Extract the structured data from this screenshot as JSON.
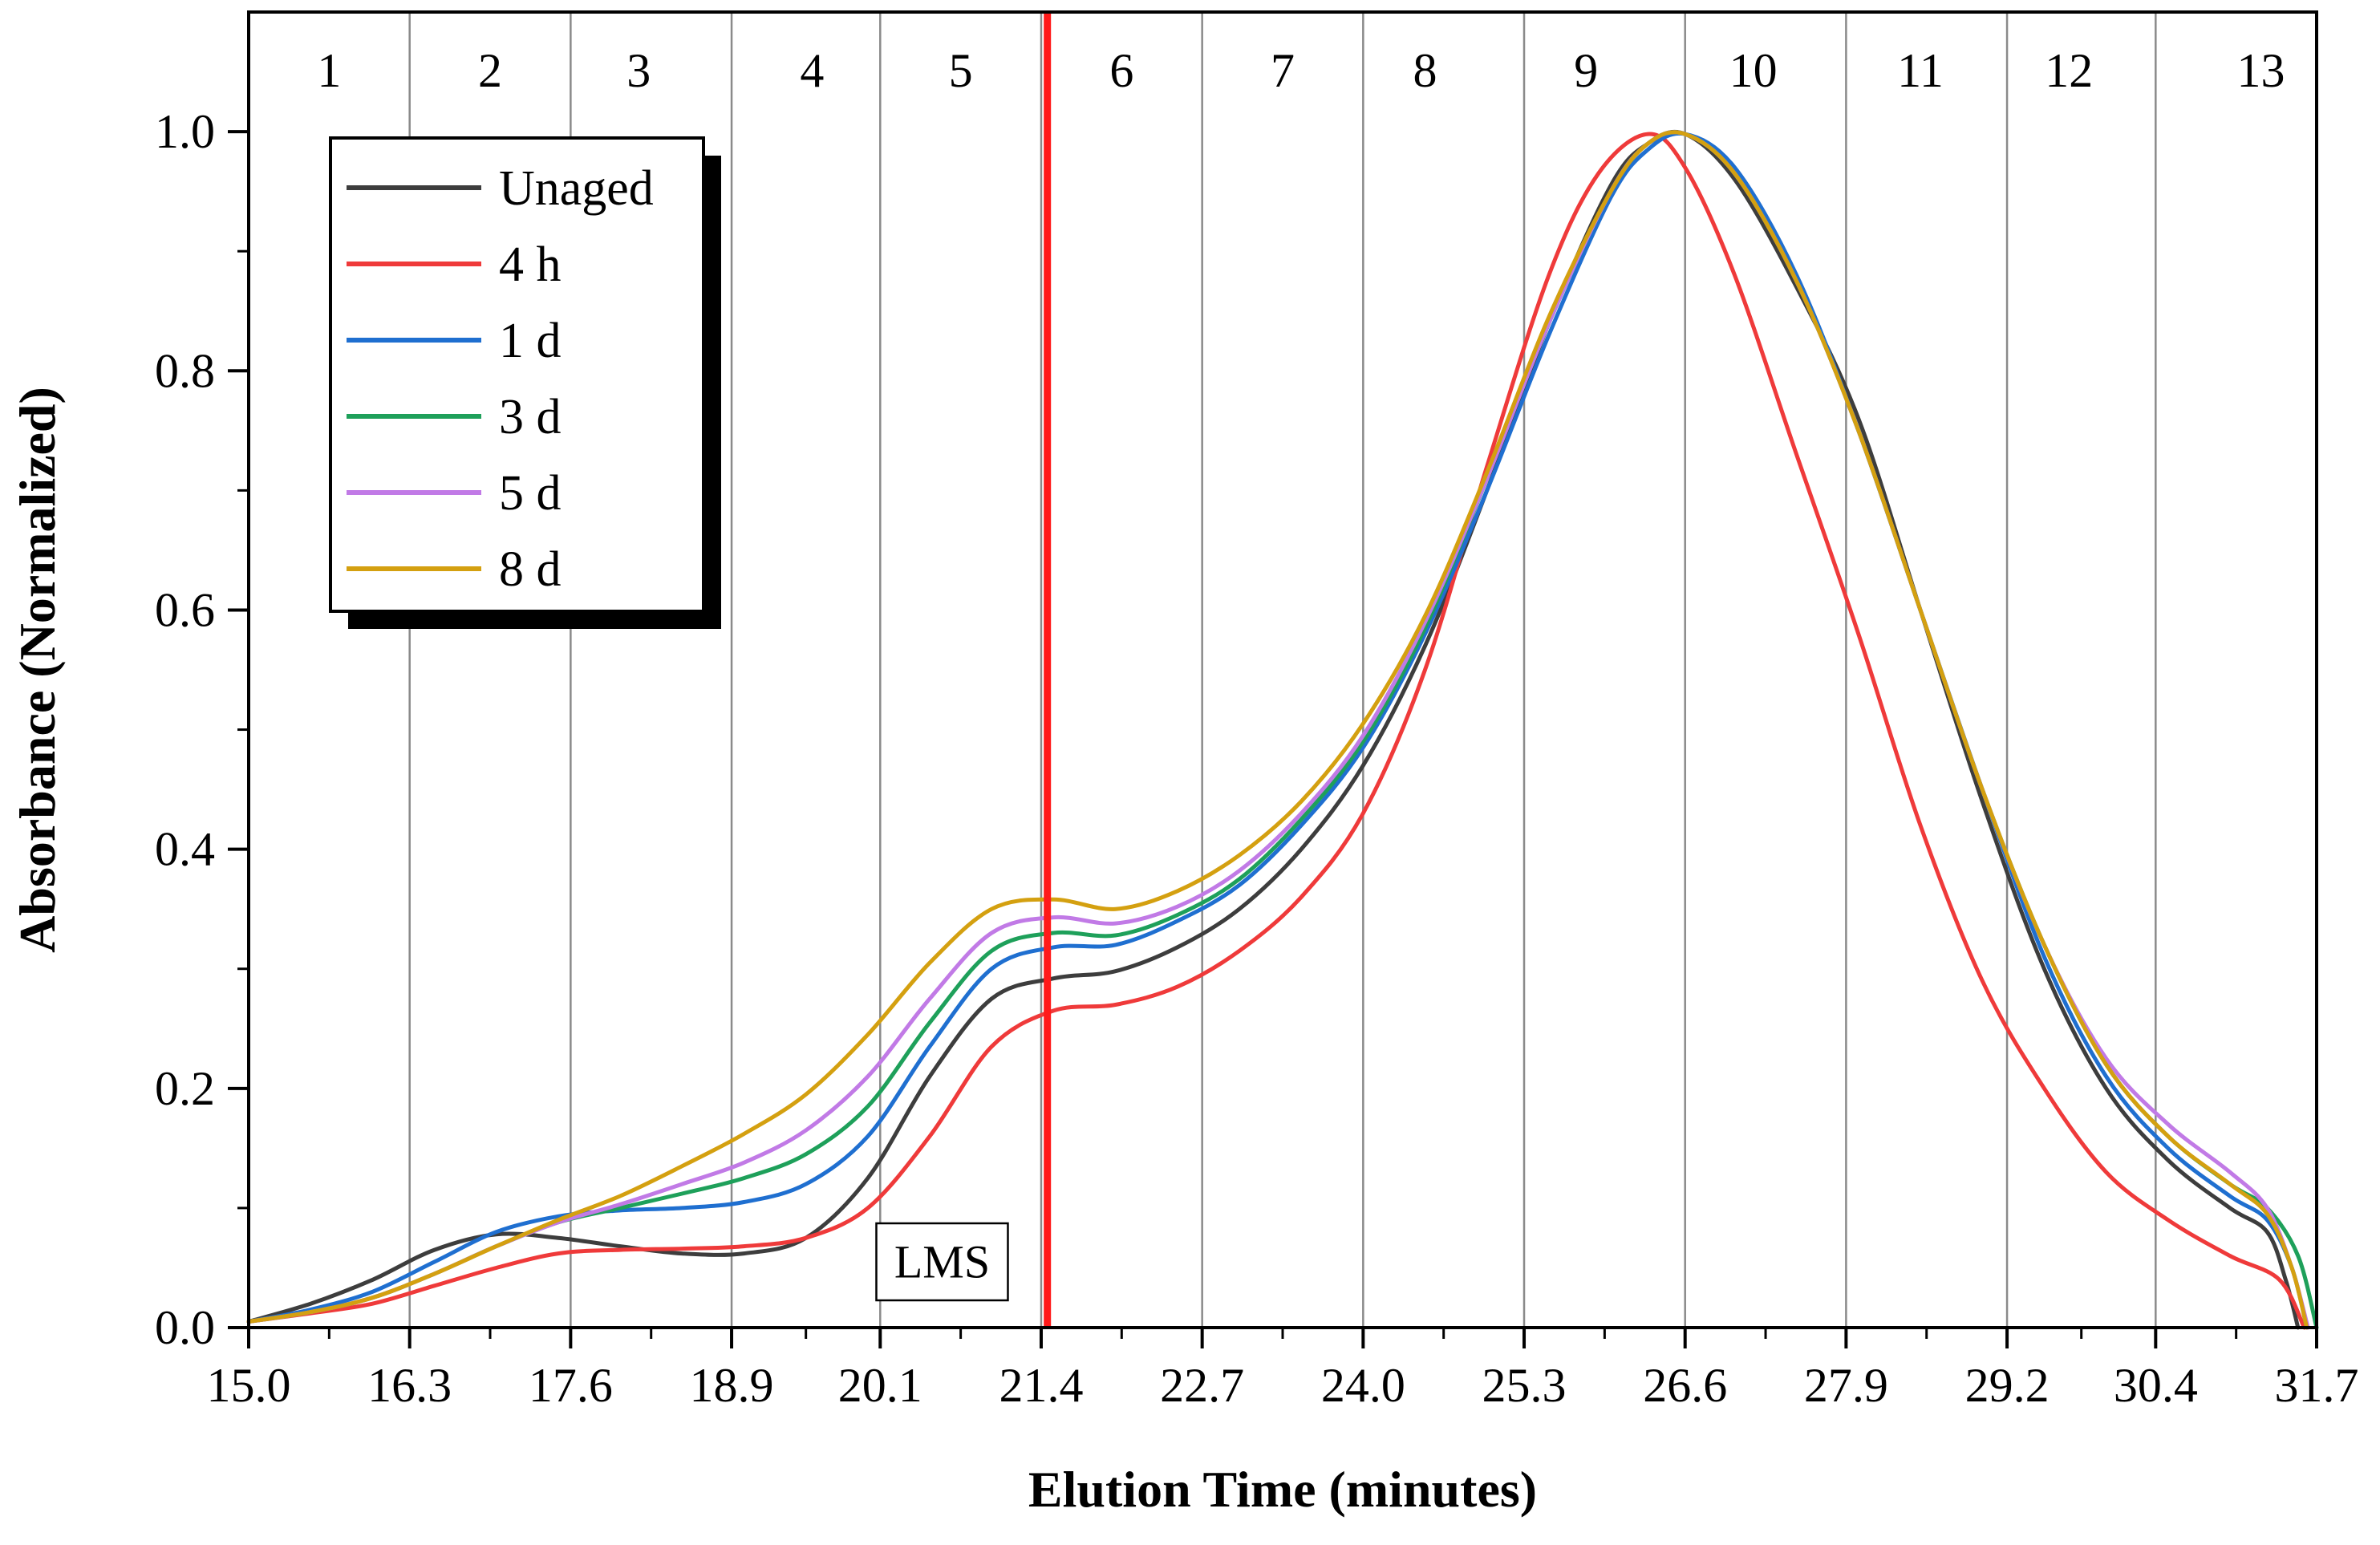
{
  "chart_data": {
    "type": "line",
    "title": "",
    "xlabel": "Elution Time (minutes)",
    "ylabel": "Absorbance (Normalized)",
    "xlim": [
      15.0,
      31.7
    ],
    "ylim": [
      0.0,
      1.1
    ],
    "grid": false,
    "legend_position": "top-left",
    "x_ticks": [
      15.0,
      16.3,
      17.6,
      18.9,
      20.1,
      21.4,
      22.7,
      24.0,
      25.3,
      26.6,
      27.9,
      29.2,
      30.4,
      31.7
    ],
    "x_tick_labels": [
      "15.0",
      "16.3",
      "17.6",
      "18.9",
      "20.1",
      "21.4",
      "22.7",
      "24.0",
      "25.3",
      "26.6",
      "27.9",
      "29.2",
      "30.4",
      "31.7"
    ],
    "y_ticks": [
      0.0,
      0.2,
      0.4,
      0.6,
      0.8,
      1.0
    ],
    "y_tick_labels": [
      "0.0",
      "0.2",
      "0.4",
      "0.6",
      "0.8",
      "1.0"
    ],
    "fraction_boundaries": [
      16.3,
      17.6,
      18.9,
      20.1,
      21.4,
      22.7,
      24.0,
      25.3,
      26.6,
      27.9,
      29.2,
      30.4
    ],
    "fractions": [
      {
        "label": "1",
        "x": 15.65
      },
      {
        "label": "2",
        "x": 16.95
      },
      {
        "label": "3",
        "x": 18.15
      },
      {
        "label": "4",
        "x": 19.55
      },
      {
        "label": "5",
        "x": 20.75
      },
      {
        "label": "6",
        "x": 22.05
      },
      {
        "label": "7",
        "x": 23.35
      },
      {
        "label": "8",
        "x": 24.5
      },
      {
        "label": "9",
        "x": 25.8
      },
      {
        "label": "10",
        "x": 27.15
      },
      {
        "label": "11",
        "x": 28.5
      },
      {
        "label": "12",
        "x": 29.7
      },
      {
        "label": "13",
        "x": 31.25
      }
    ],
    "vertical_marker": {
      "x": 21.45,
      "color": "#ff1a1a"
    },
    "annotation": {
      "text": "LMS",
      "x": 20.6,
      "y": 0.055
    },
    "series": [
      {
        "name": "Unaged",
        "color": "#3d3d3d",
        "x": [
          15.0,
          15.5,
          16.0,
          16.5,
          17.0,
          17.5,
          18.0,
          18.5,
          19.0,
          19.5,
          20.0,
          20.5,
          21.0,
          21.5,
          22.0,
          22.5,
          23.0,
          23.5,
          24.0,
          24.5,
          25.0,
          25.5,
          26.0,
          26.3,
          26.6,
          27.0,
          27.5,
          28.0,
          28.5,
          29.0,
          29.5,
          30.0,
          30.5,
          31.0,
          31.3,
          31.45,
          31.55
        ],
        "values": [
          0.005,
          0.02,
          0.04,
          0.065,
          0.078,
          0.075,
          0.068,
          0.062,
          0.062,
          0.075,
          0.125,
          0.21,
          0.275,
          0.292,
          0.298,
          0.318,
          0.35,
          0.4,
          0.47,
          0.57,
          0.7,
          0.84,
          0.955,
          0.99,
          0.998,
          0.96,
          0.87,
          0.76,
          0.6,
          0.44,
          0.3,
          0.2,
          0.14,
          0.1,
          0.08,
          0.04,
          0.0
        ]
      },
      {
        "name": "4 h",
        "color": "#ef3a3a",
        "x": [
          15.0,
          15.5,
          16.0,
          16.5,
          17.0,
          17.5,
          18.0,
          18.5,
          19.0,
          19.5,
          20.0,
          20.5,
          21.0,
          21.5,
          22.0,
          22.5,
          23.0,
          23.5,
          24.0,
          24.5,
          25.0,
          25.5,
          25.9,
          26.3,
          26.6,
          27.0,
          27.5,
          28.0,
          28.5,
          29.0,
          29.5,
          30.0,
          30.5,
          31.0,
          31.4,
          31.6
        ],
        "values": [
          0.005,
          0.012,
          0.02,
          0.035,
          0.05,
          0.062,
          0.065,
          0.066,
          0.068,
          0.075,
          0.1,
          0.16,
          0.235,
          0.265,
          0.27,
          0.285,
          0.315,
          0.36,
          0.43,
          0.55,
          0.72,
          0.88,
          0.965,
          0.998,
          0.97,
          0.88,
          0.73,
          0.58,
          0.42,
          0.29,
          0.2,
          0.13,
          0.09,
          0.06,
          0.04,
          0.0
        ]
      },
      {
        "name": "1 d",
        "color": "#1f6fd0",
        "x": [
          15.0,
          15.5,
          16.0,
          16.5,
          17.0,
          17.5,
          18.0,
          18.5,
          19.0,
          19.5,
          20.0,
          20.5,
          21.0,
          21.5,
          22.0,
          22.5,
          23.0,
          23.5,
          24.0,
          24.5,
          25.0,
          25.5,
          26.0,
          26.3,
          26.6,
          27.0,
          27.5,
          28.0,
          28.5,
          29.0,
          29.5,
          30.0,
          30.5,
          31.0,
          31.3,
          31.5,
          31.62
        ],
        "values": [
          0.005,
          0.015,
          0.03,
          0.055,
          0.08,
          0.093,
          0.098,
          0.1,
          0.105,
          0.12,
          0.16,
          0.235,
          0.3,
          0.318,
          0.32,
          0.34,
          0.37,
          0.42,
          0.485,
          0.58,
          0.7,
          0.83,
          0.945,
          0.985,
          0.998,
          0.97,
          0.88,
          0.75,
          0.6,
          0.45,
          0.31,
          0.21,
          0.15,
          0.11,
          0.09,
          0.05,
          0.0
        ]
      },
      {
        "name": "3 d",
        "color": "#1ea05a",
        "x": [
          15.0,
          15.5,
          16.0,
          16.5,
          17.0,
          17.5,
          18.0,
          18.5,
          19.0,
          19.5,
          20.0,
          20.5,
          21.0,
          21.5,
          22.0,
          22.5,
          23.0,
          23.5,
          24.0,
          24.5,
          25.0,
          25.5,
          26.0,
          26.3,
          26.6,
          27.0,
          27.5,
          28.0,
          28.5,
          29.0,
          29.5,
          30.0,
          30.5,
          31.0,
          31.3,
          31.55,
          31.7
        ],
        "values": [
          0.005,
          0.013,
          0.025,
          0.045,
          0.068,
          0.088,
          0.1,
          0.112,
          0.125,
          0.145,
          0.185,
          0.255,
          0.315,
          0.33,
          0.328,
          0.345,
          0.375,
          0.425,
          0.49,
          0.585,
          0.71,
          0.84,
          0.95,
          0.99,
          0.998,
          0.965,
          0.875,
          0.75,
          0.6,
          0.45,
          0.32,
          0.22,
          0.16,
          0.12,
          0.1,
          0.06,
          0.0
        ]
      },
      {
        "name": "5 d",
        "color": "#c17ae6",
        "x": [
          15.0,
          15.5,
          16.0,
          16.5,
          17.0,
          17.5,
          18.0,
          18.5,
          19.0,
          19.5,
          20.0,
          20.5,
          21.0,
          21.5,
          22.0,
          22.5,
          23.0,
          23.5,
          24.0,
          24.5,
          25.0,
          25.5,
          26.0,
          26.3,
          26.6,
          27.0,
          27.5,
          28.0,
          28.5,
          29.0,
          29.5,
          30.0,
          30.5,
          31.0,
          31.3,
          31.5,
          31.63
        ],
        "values": [
          0.005,
          0.013,
          0.025,
          0.045,
          0.068,
          0.088,
          0.103,
          0.12,
          0.138,
          0.165,
          0.21,
          0.275,
          0.33,
          0.343,
          0.338,
          0.352,
          0.382,
          0.43,
          0.495,
          0.59,
          0.71,
          0.84,
          0.95,
          0.99,
          0.998,
          0.965,
          0.875,
          0.75,
          0.6,
          0.45,
          0.32,
          0.225,
          0.17,
          0.13,
          0.1,
          0.05,
          0.0
        ]
      },
      {
        "name": "8 d",
        "color": "#d4a010",
        "x": [
          15.0,
          15.5,
          16.0,
          16.5,
          17.0,
          17.5,
          18.0,
          18.5,
          19.0,
          19.5,
          20.0,
          20.5,
          21.0,
          21.5,
          22.0,
          22.5,
          23.0,
          23.5,
          24.0,
          24.5,
          25.0,
          25.5,
          26.0,
          26.3,
          26.6,
          27.0,
          27.5,
          28.0,
          28.5,
          29.0,
          29.5,
          30.0,
          30.5,
          31.0,
          31.3,
          31.5,
          31.62
        ],
        "values": [
          0.005,
          0.013,
          0.025,
          0.045,
          0.068,
          0.09,
          0.11,
          0.135,
          0.162,
          0.195,
          0.245,
          0.305,
          0.35,
          0.358,
          0.35,
          0.365,
          0.395,
          0.44,
          0.505,
          0.595,
          0.715,
          0.845,
          0.95,
          0.99,
          0.998,
          0.965,
          0.875,
          0.75,
          0.6,
          0.45,
          0.32,
          0.22,
          0.16,
          0.12,
          0.095,
          0.05,
          0.0
        ]
      }
    ]
  }
}
